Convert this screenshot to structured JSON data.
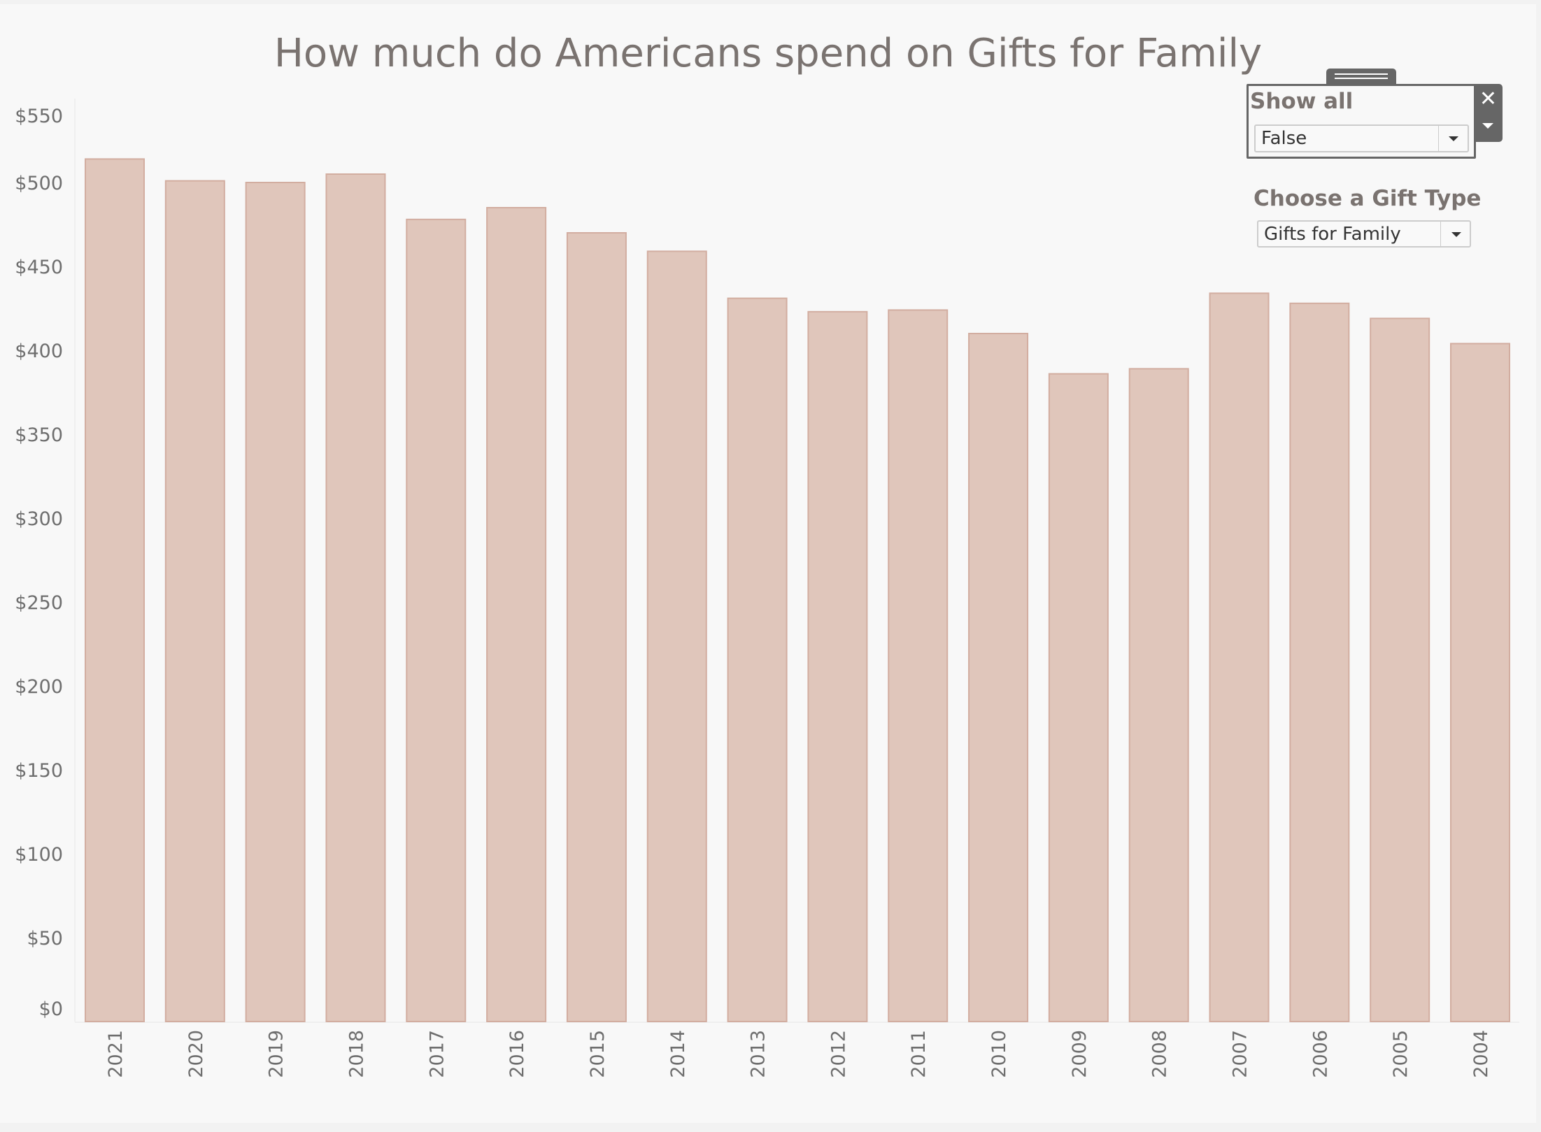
{
  "chart_data": {
    "type": "bar",
    "title": "How much do Americans spend on Gifts for Family",
    "xlabel": "",
    "ylabel": "",
    "categories": [
      "2021",
      "2020",
      "2019",
      "2018",
      "2017",
      "2016",
      "2015",
      "2014",
      "2013",
      "2012",
      "2011",
      "2010",
      "2009",
      "2008",
      "2007",
      "2006",
      "2005",
      "2004"
    ],
    "values": [
      514,
      501,
      500,
      505,
      478,
      485,
      470,
      459,
      431,
      423,
      424,
      410,
      386,
      389,
      434,
      428,
      419,
      404
    ],
    "ylim": [
      0,
      550
    ],
    "yticks": [
      0,
      50,
      100,
      150,
      200,
      250,
      300,
      350,
      400,
      450,
      500,
      550
    ],
    "ytick_labels": [
      "$0",
      "$50",
      "$100",
      "$150",
      "$200",
      "$250",
      "$300",
      "$350",
      "$400",
      "$450",
      "$500",
      "$550"
    ],
    "grid": false,
    "legend": "none",
    "bar_color": "#e0c6bb",
    "bar_border_color": "#d2ada0"
  },
  "controls": {
    "show_all": {
      "label": "Show all",
      "value": "False"
    },
    "gift_type": {
      "label": "Choose a Gift Type",
      "value": "Gifts for Family"
    },
    "close_glyph": "✕"
  }
}
